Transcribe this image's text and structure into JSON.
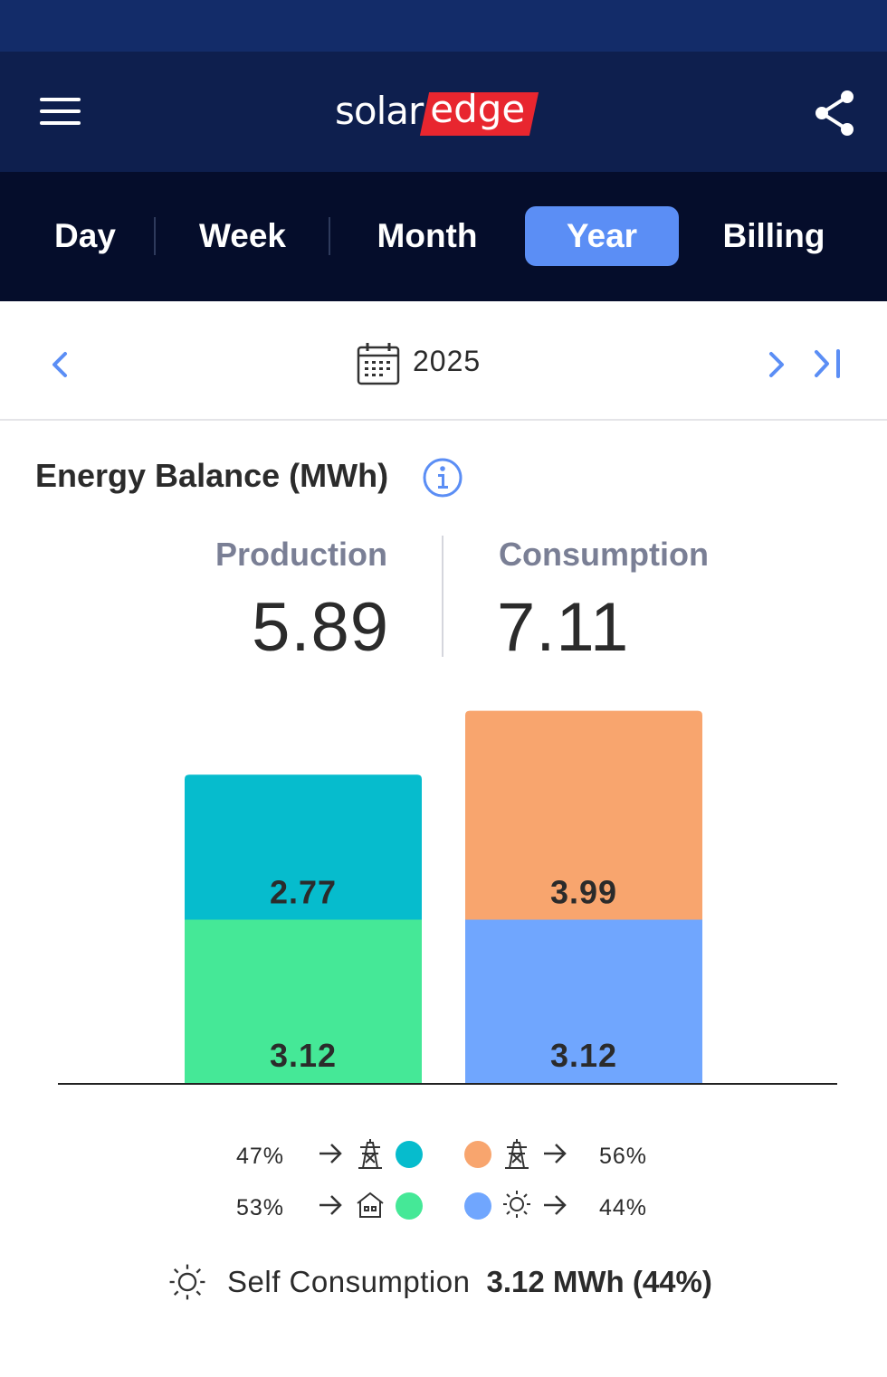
{
  "header": {
    "logo_part1": "solar",
    "logo_part2": "edge",
    "menu_icon": "hamburger-menu-icon",
    "share_icon": "share-icon"
  },
  "tabs": [
    {
      "label": "Day",
      "active": false
    },
    {
      "label": "Week",
      "active": false
    },
    {
      "label": "Month",
      "active": false
    },
    {
      "label": "Year",
      "active": true
    },
    {
      "label": "Billing",
      "active": false
    }
  ],
  "date_nav": {
    "period": "2025",
    "icons": [
      "chevron-left-icon",
      "calendar-icon",
      "chevron-right-icon",
      "skip-to-end-icon"
    ]
  },
  "energy_balance": {
    "title": "Energy Balance (MWh)",
    "production_label": "Production",
    "production_value": "5.89",
    "consumption_label": "Consumption",
    "consumption_value": "7.11"
  },
  "chart_data": {
    "type": "bar",
    "stacked": true,
    "unit": "MWh",
    "categories": [
      "Production",
      "Consumption"
    ],
    "series": [
      {
        "column": "Production",
        "values": [
          3.12,
          2.77
        ],
        "colors": [
          "#45e897",
          "#06bccd"
        ]
      },
      {
        "column": "Consumption",
        "values": [
          3.12,
          3.99
        ],
        "colors": [
          "#70a6fe",
          "#f8a56e"
        ]
      }
    ],
    "grid": false,
    "legend_placement": "bottom"
  },
  "legend": {
    "left": [
      {
        "percent": "47%",
        "icon": "power-grid-icon",
        "color": "#06bccd"
      },
      {
        "percent": "53%",
        "icon": "house-icon",
        "color": "#45e897"
      }
    ],
    "right": [
      {
        "percent": "56%",
        "icon": "power-grid-icon",
        "color": "#f8a56e"
      },
      {
        "percent": "44%",
        "icon": "sun-icon",
        "color": "#70a6fe"
      }
    ]
  },
  "self_consumption": {
    "label": "Self Consumption",
    "value": "3.12 MWh (44%)",
    "icon": "sun-icon"
  },
  "colors": {
    "header_bg": "#0e1f4e",
    "tabbar_bg": "#050d2b",
    "active_tab": "#5b8ef5",
    "accent_blue": "#5b8ef5",
    "logo_red": "#e8262f"
  }
}
